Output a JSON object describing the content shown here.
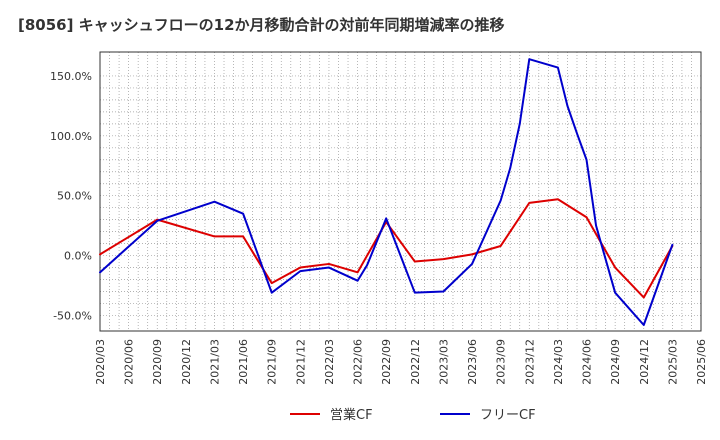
{
  "chart_data": {
    "type": "line",
    "title": "[8056]  キャッシュフローの12か月移動合計の対前年同期増減率の推移",
    "xlabel": "",
    "ylabel": "",
    "ylim": [
      -63,
      170
    ],
    "yticks": [
      150,
      100,
      50,
      0,
      -50
    ],
    "ytick_labels": [
      "150.0%",
      "100.0%",
      "50.0%",
      "0.0%",
      "-50.0%"
    ],
    "xlim": [
      "2020/03",
      "2025/06"
    ],
    "xtick_labels": [
      "2020/03",
      "2020/06",
      "2020/09",
      "2020/12",
      "2021/03",
      "2021/06",
      "2021/09",
      "2021/12",
      "2022/03",
      "2022/06",
      "2022/09",
      "2022/12",
      "2023/03",
      "2023/06",
      "2023/09",
      "2023/12",
      "2024/03",
      "2024/06",
      "2024/09",
      "2024/12",
      "2025/03",
      "2025/06"
    ],
    "grid": true,
    "legend_position": "bottom-center",
    "series": [
      {
        "name": "営業CF",
        "color": "#dd0000",
        "points": [
          [
            "2020/03",
            1
          ],
          [
            "2020/09",
            30
          ],
          [
            "2021/03",
            16
          ],
          [
            "2021/06",
            16
          ],
          [
            "2021/09",
            -23
          ],
          [
            "2021/12",
            -10
          ],
          [
            "2022/03",
            -7
          ],
          [
            "2022/06",
            -14
          ],
          [
            "2022/09",
            28
          ],
          [
            "2022/12",
            -5
          ],
          [
            "2023/03",
            -3
          ],
          [
            "2023/06",
            1
          ],
          [
            "2023/09",
            8
          ],
          [
            "2023/12",
            44
          ],
          [
            "2024/03",
            47
          ],
          [
            "2024/06",
            32
          ],
          [
            "2024/09",
            -10
          ],
          [
            "2024/12",
            -35
          ],
          [
            "2025/03",
            8
          ]
        ]
      },
      {
        "name": "フリーCF",
        "color": "#0000cc",
        "points": [
          [
            "2020/03",
            -14
          ],
          [
            "2020/09",
            29
          ],
          [
            "2021/03",
            45
          ],
          [
            "2021/06",
            35
          ],
          [
            "2021/09",
            -31
          ],
          [
            "2021/12",
            -13
          ],
          [
            "2022/03",
            -10
          ],
          [
            "2022/06",
            -21
          ],
          [
            "2022/07",
            -8
          ],
          [
            "2022/09",
            31
          ],
          [
            "2022/12",
            -31
          ],
          [
            "2023/03",
            -30
          ],
          [
            "2023/06",
            -7
          ],
          [
            "2023/09",
            46
          ],
          [
            "2023/10",
            73
          ],
          [
            "2023/11",
            110
          ],
          [
            "2023/12",
            164
          ],
          [
            "2024/03",
            157
          ],
          [
            "2024/04",
            125
          ],
          [
            "2024/05",
            102
          ],
          [
            "2024/06",
            80
          ],
          [
            "2024/07",
            25
          ],
          [
            "2024/09",
            -31
          ],
          [
            "2024/12",
            -58
          ],
          [
            "2025/03",
            9
          ]
        ]
      }
    ]
  }
}
